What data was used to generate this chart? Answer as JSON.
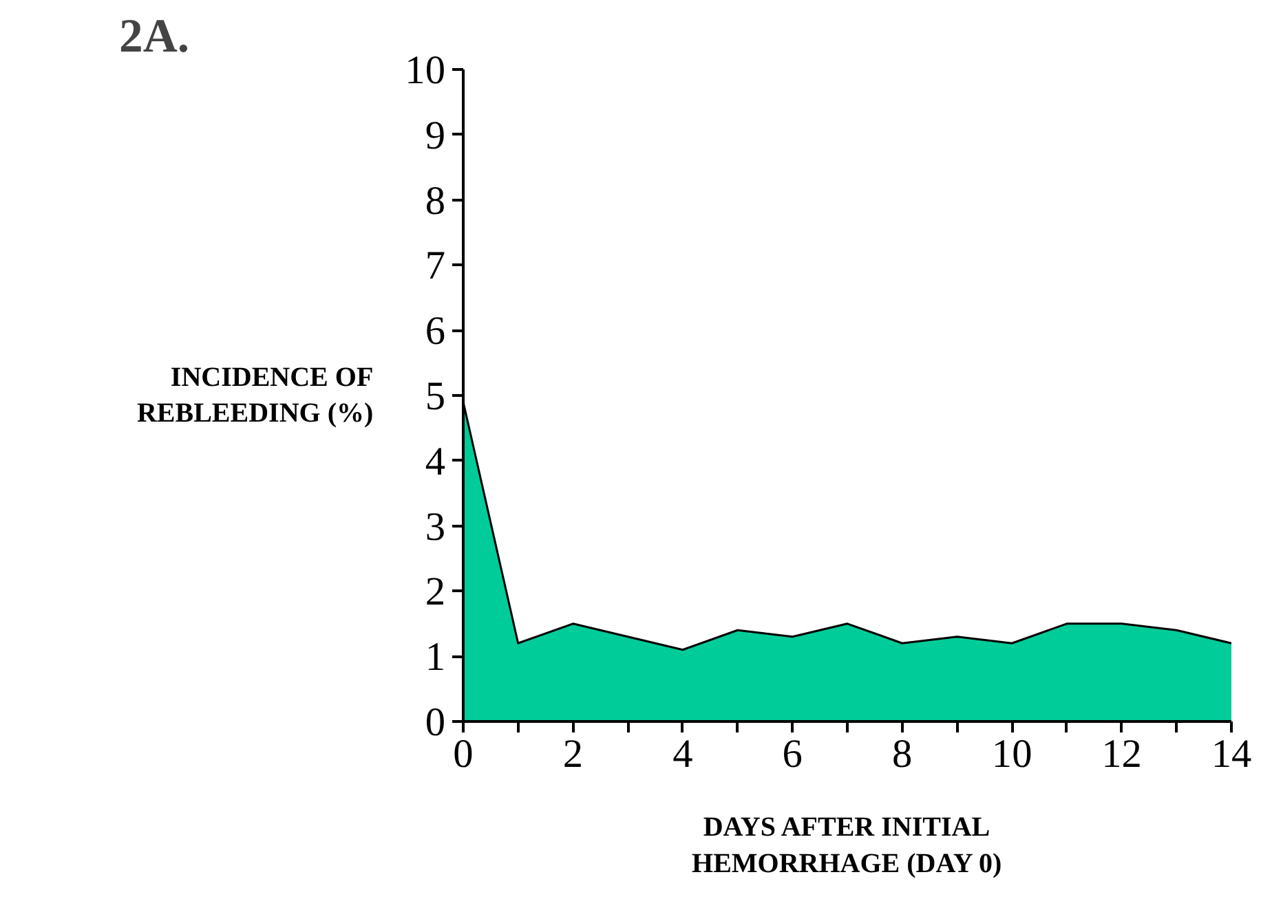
{
  "chart_data": {
    "type": "area",
    "title": "2A.",
    "ylabel": "INCIDENCE OF REBLEEDING (%)",
    "xlabel": "DAYS AFTER INITIAL HEMORRHAGE (DAY 0)",
    "x": [
      0,
      1,
      2,
      3,
      4,
      5,
      6,
      7,
      8,
      9,
      10,
      11,
      12,
      13,
      14
    ],
    "series": [
      {
        "color": "#00cc99",
        "values": [
          4.9,
          1.2,
          1.5,
          1.3,
          1.1,
          1.4,
          1.3,
          1.5,
          1.2,
          1.3,
          1.2,
          1.5,
          1.5,
          1.4,
          1.2
        ]
      }
    ],
    "xlim": [
      0,
      14
    ],
    "ylim": [
      0,
      10
    ],
    "xticks": [
      0,
      {
        "value": 1,
        "label": null
      },
      2,
      {
        "value": 3,
        "label": null
      },
      4,
      {
        "value": 5,
        "label": null
      },
      6,
      {
        "value": 7,
        "label": null
      },
      8,
      {
        "value": 9,
        "label": null
      },
      10,
      {
        "value": 11,
        "label": null
      },
      12,
      {
        "value": 13,
        "label": null
      },
      14
    ],
    "yticks": [
      0,
      1,
      2,
      3,
      4,
      5,
      6,
      7,
      8,
      9,
      10
    ],
    "grid": false
  }
}
